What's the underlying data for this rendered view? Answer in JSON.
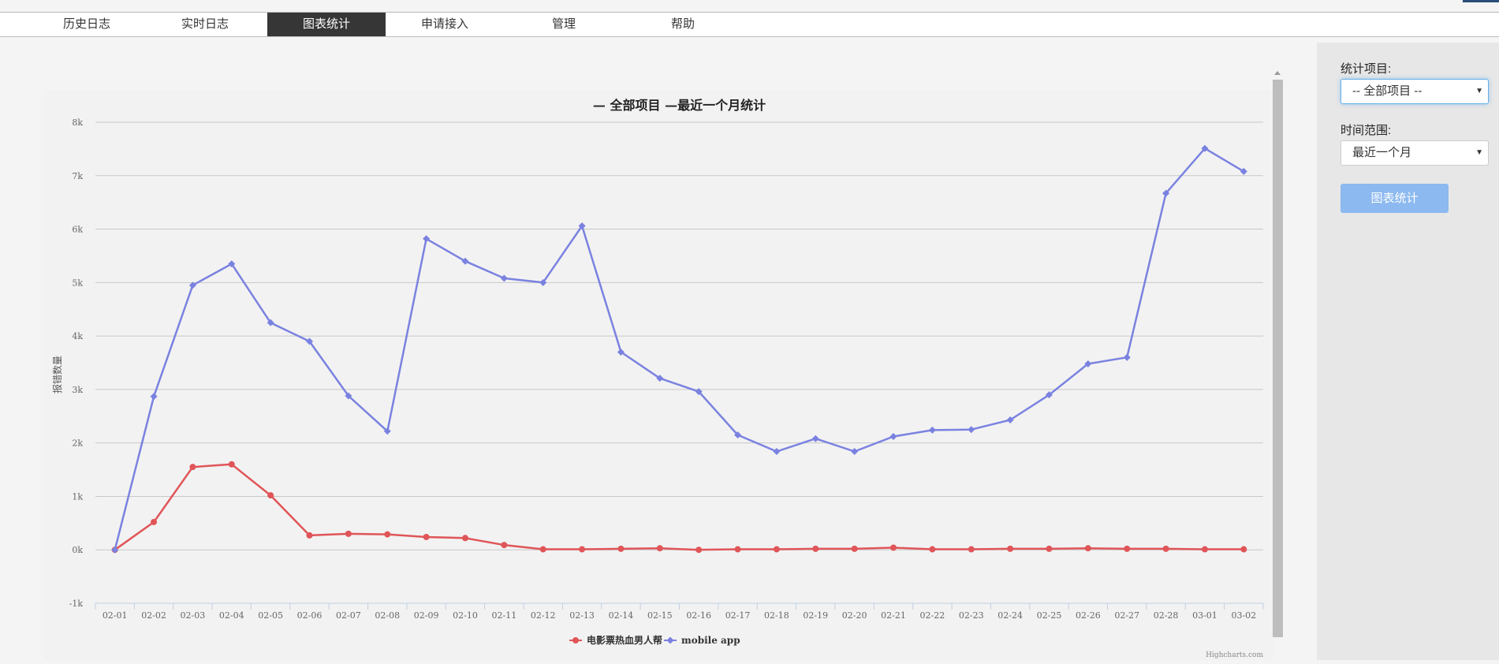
{
  "nav": {
    "tabs": [
      {
        "label": "历史日志",
        "active": false
      },
      {
        "label": "实时日志",
        "active": false
      },
      {
        "label": "图表统计",
        "active": true
      },
      {
        "label": "申请接入",
        "active": false
      },
      {
        "label": "管理",
        "active": false
      },
      {
        "label": "帮助",
        "active": false
      }
    ]
  },
  "sidebar": {
    "item_label": "统计项目:",
    "item_value": "-- 全部项目 --",
    "range_label": "时间范围:",
    "range_value": "最近一个月",
    "submit_label": "图表统计"
  },
  "chart_data": {
    "type": "line",
    "title": "— 全部项目 —最近一个月统计",
    "ylabel": "报错数量",
    "xlabel": "",
    "ylim": [
      -1000,
      8000
    ],
    "yticks": [
      -1000,
      0,
      1000,
      2000,
      3000,
      4000,
      5000,
      6000,
      7000,
      8000
    ],
    "ytick_labels": [
      "-1k",
      "0k",
      "1k",
      "2k",
      "3k",
      "4k",
      "5k",
      "6k",
      "7k",
      "8k"
    ],
    "categories": [
      "02-01",
      "02-02",
      "02-03",
      "02-04",
      "02-05",
      "02-06",
      "02-07",
      "02-08",
      "02-09",
      "02-10",
      "02-11",
      "02-12",
      "02-13",
      "02-14",
      "02-15",
      "02-16",
      "02-17",
      "02-18",
      "02-19",
      "02-20",
      "02-21",
      "02-22",
      "02-23",
      "02-24",
      "02-25",
      "02-26",
      "02-27",
      "02-28",
      "03-01",
      "03-02"
    ],
    "grid": true,
    "legend": "bottom-center",
    "credits": "Highcharts.com",
    "series": [
      {
        "name": "电影票热血男人帮",
        "color": "#e05558",
        "marker": "circle",
        "values": [
          0,
          520,
          1550,
          1600,
          1020,
          270,
          300,
          290,
          240,
          220,
          90,
          10,
          10,
          20,
          30,
          0,
          10,
          10,
          20,
          20,
          40,
          10,
          10,
          20,
          20,
          30,
          20,
          20,
          10,
          10
        ]
      },
      {
        "name": "mobile app",
        "color": "#7a82e0",
        "marker": "diamond",
        "values": [
          0,
          2870,
          4950,
          5350,
          4250,
          3900,
          2880,
          2220,
          5820,
          5400,
          5080,
          5000,
          6060,
          3700,
          3210,
          2960,
          2150,
          1840,
          2080,
          1840,
          2120,
          2240,
          2250,
          2430,
          2900,
          3480,
          3600,
          6670,
          7510,
          7080
        ]
      }
    ]
  }
}
